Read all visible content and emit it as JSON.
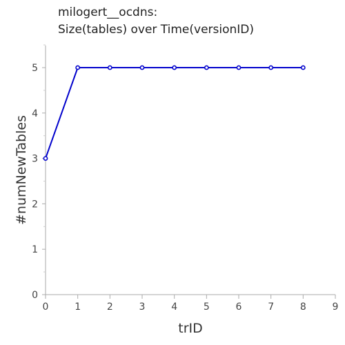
{
  "chart_data": {
    "type": "line",
    "title": "milogert__ocdns:",
    "subtitle": "Size(tables) over Time(versionID)",
    "xlabel": "trID",
    "ylabel": "#numNewTables",
    "xlim": [
      0,
      9
    ],
    "ylim": [
      0,
      5
    ],
    "x_ticks": [
      "0",
      "1",
      "2",
      "3",
      "4",
      "5",
      "6",
      "7",
      "8",
      "9"
    ],
    "y_ticks": [
      "0",
      "1",
      "2",
      "3",
      "4",
      "5"
    ],
    "grid": false,
    "line_color": "#0000cc",
    "series": [
      {
        "x": [
          0,
          1,
          2,
          3,
          4,
          5,
          6,
          7,
          8
        ],
        "values": [
          3,
          5,
          5,
          5,
          5,
          5,
          5,
          5,
          5
        ]
      }
    ]
  }
}
